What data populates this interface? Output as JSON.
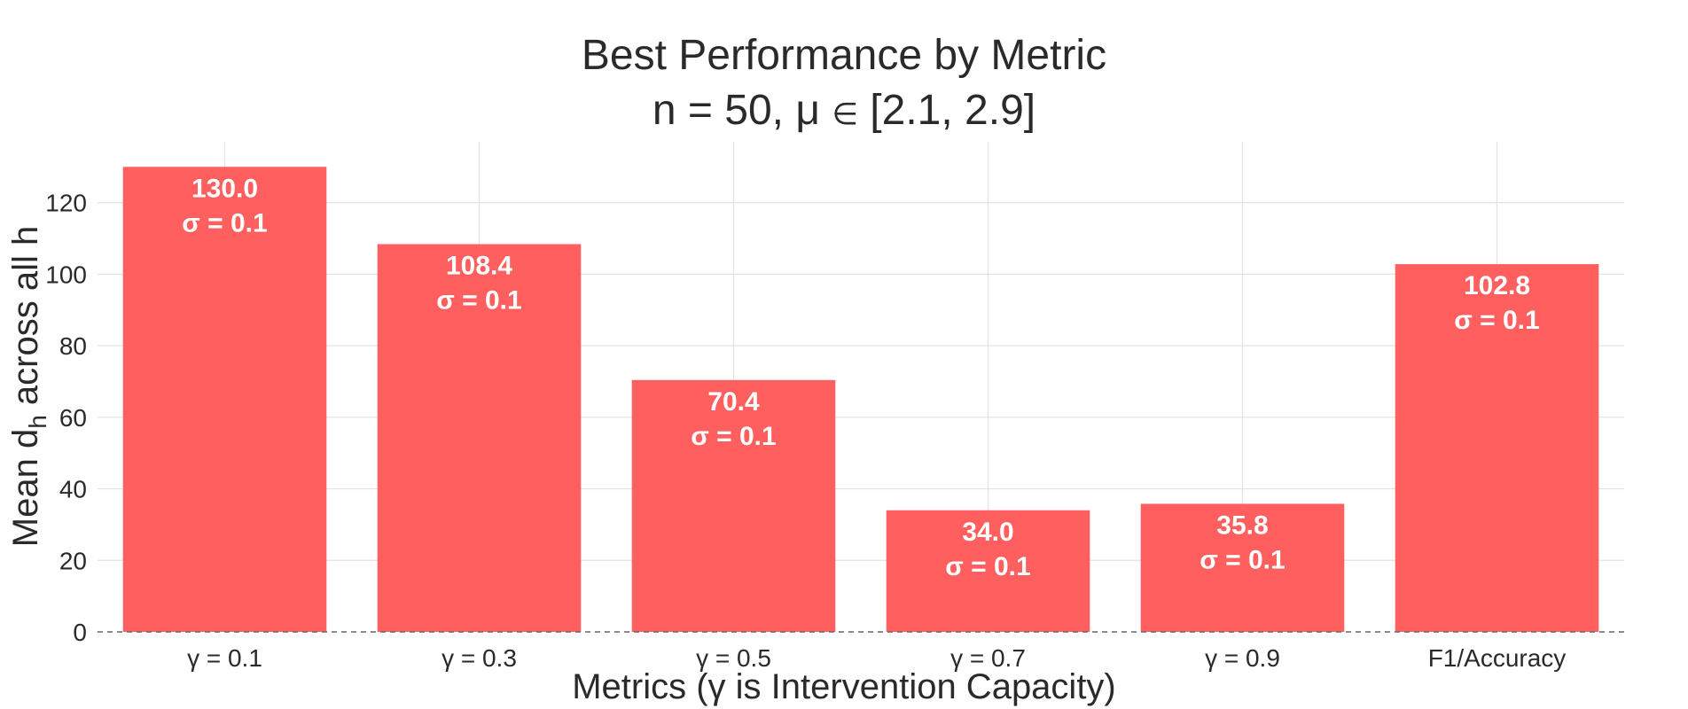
{
  "chart_data": {
    "type": "bar",
    "title": "Best Performance by Metric",
    "subtitle_prefix": "n = 50, μ ",
    "subtitle_symbol": "∈",
    "subtitle_suffix": " [2.1, 2.9]",
    "xlabel": "Metrics (γ is Intervention Capacity)",
    "ylabel_prefix": "Mean d",
    "ylabel_sub": "h",
    "ylabel_suffix": " across all h",
    "categories": [
      "γ = 0.1",
      "γ = 0.3",
      "γ = 0.5",
      "γ = 0.7",
      "γ = 0.9",
      "F1/Accuracy"
    ],
    "values": [
      130.0,
      108.4,
      70.4,
      34.0,
      35.8,
      102.8
    ],
    "value_labels": [
      "130.0",
      "108.4",
      "70.4",
      "34.0",
      "35.8",
      "102.8"
    ],
    "sigma_labels": [
      "σ = 0.1",
      "σ = 0.1",
      "σ = 0.1",
      "σ = 0.1",
      "σ = 0.1",
      "σ = 0.1"
    ],
    "yticks": [
      0,
      20,
      40,
      60,
      80,
      100,
      120
    ],
    "ylim": [
      0,
      137
    ],
    "grid": true,
    "legend": "none",
    "bar_color": "#ff5f5f"
  }
}
